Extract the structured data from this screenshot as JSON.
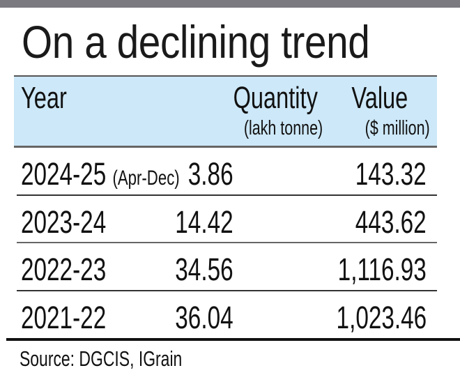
{
  "title": "On a declining trend",
  "colors": {
    "header_bg": "#cde8f8",
    "top_bar": "#7b7a80"
  },
  "chart_data": {
    "type": "table",
    "title": "On a declining trend",
    "columns": [
      {
        "label": "Year",
        "sub": ""
      },
      {
        "label": "Quantity",
        "sub": "(lakh tonne)"
      },
      {
        "label": "Value",
        "sub": "($ million)"
      }
    ],
    "rows": [
      {
        "year": "2024-25",
        "note": "(Apr-Dec)",
        "quantity": "3.86",
        "value": "143.32"
      },
      {
        "year": "2023-24",
        "note": "",
        "quantity": "14.42",
        "value": "443.62"
      },
      {
        "year": "2022-23",
        "note": "",
        "quantity": "34.56",
        "value": "1,116.93"
      },
      {
        "year": "2021-22",
        "note": "",
        "quantity": "36.04",
        "value": "1,023.46"
      }
    ],
    "source": "Source: DGCIS, IGrain"
  }
}
